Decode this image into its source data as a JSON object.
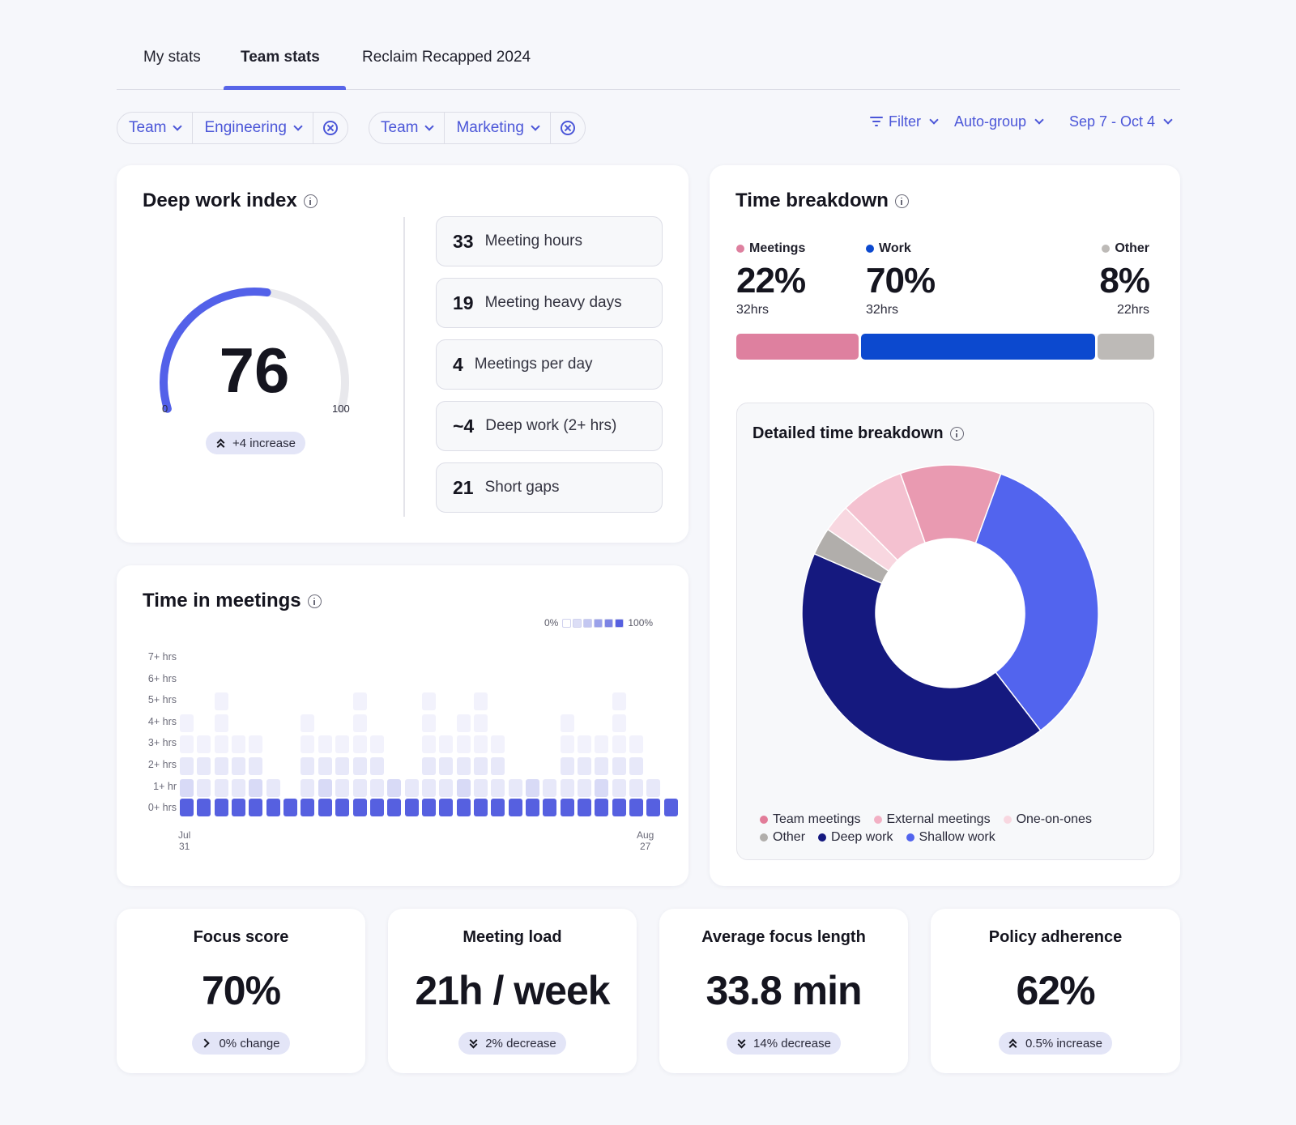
{
  "tabs": [
    {
      "label": "My stats"
    },
    {
      "label": "Team stats"
    },
    {
      "label": "Reclaim Recapped 2024"
    }
  ],
  "filters": [
    {
      "type": "Team",
      "value": "Engineering"
    },
    {
      "type": "Team",
      "value": "Marketing"
    }
  ],
  "toolbar": {
    "filter": "Filter",
    "group": "Auto-group",
    "date_range": "Sep 7 - Oct 4"
  },
  "deep_work": {
    "title": "Deep work index",
    "score": "76",
    "score_value": 76,
    "min": "0",
    "max": "100",
    "change": "+4 increase",
    "stats": [
      {
        "value": "33",
        "label": "Meeting hours"
      },
      {
        "value": "19",
        "label": "Meeting heavy days"
      },
      {
        "value": "4",
        "label": "Meetings per day"
      },
      {
        "value": "~4",
        "label": "Deep work (2+ hrs)"
      },
      {
        "value": "21",
        "label": "Short gaps"
      }
    ],
    "accent": "#5361e9",
    "track": "#e8e8ec"
  },
  "time_breakdown": {
    "title": "Time breakdown",
    "items": [
      {
        "label": "Meetings",
        "pct": "22%",
        "share": 22,
        "hours": "32hrs",
        "color": "#de809f"
      },
      {
        "label": "Work",
        "pct": "70%",
        "share": 70,
        "hours": "32hrs",
        "color": "#0c49cf"
      },
      {
        "label": "Other",
        "pct": "8%",
        "share": 8,
        "hours": "22hrs",
        "color": "#bdbab7"
      }
    ]
  },
  "detailed": {
    "title": "Detailed time breakdown",
    "legend": [
      {
        "label": "Team meetings",
        "color": "#e27c99"
      },
      {
        "label": "External meetings",
        "color": "#f2b0c4"
      },
      {
        "label": "One-on-ones",
        "color": "#f8d7e0"
      },
      {
        "label": "Other",
        "color": "#b1aeab"
      },
      {
        "label": "Deep work",
        "color": "#15197f"
      },
      {
        "label": "Shallow work",
        "color": "#5264ee"
      }
    ]
  },
  "chart_data": {
    "type": "pie",
    "title": "Detailed time breakdown",
    "labels": [
      "Shallow work",
      "Deep work",
      "Other",
      "One-on-ones",
      "External meetings",
      "Team meetings"
    ],
    "values": [
      34,
      42,
      3,
      3,
      7,
      11
    ],
    "colors": [
      "#5264ee",
      "#15197f",
      "#b1aeab",
      "#f8d7e0",
      "#f4c1d0",
      "#e99ab1"
    ],
    "donut": true
  },
  "meetings": {
    "title": "Time in meetings",
    "scale_min": "0%",
    "scale_max": "100%",
    "y_labels": [
      "7+ hrs",
      "6+ hrs",
      "5+ hrs",
      "4+ hrs",
      "3+ hrs",
      "2+ hrs",
      "1+ hr",
      "0+ hrs"
    ],
    "x_start": [
      "Jul",
      "31"
    ],
    "x_end": [
      "Aug",
      "27"
    ],
    "columns": [
      4,
      3,
      5,
      3,
      3,
      1,
      0,
      4,
      3,
      3,
      5,
      3,
      1,
      1,
      5,
      3,
      4,
      5,
      3,
      1,
      1,
      1,
      4,
      3,
      3,
      5,
      3,
      1,
      0
    ],
    "intensity_colors": [
      "#f2f2fc",
      "#e7e8f9",
      "#d8daf6",
      "#c7cbf2"
    ],
    "base_color": "#5660e0"
  },
  "kpis": [
    {
      "title": "Focus score",
      "value": "70%",
      "change": "0% change",
      "trend": "flat"
    },
    {
      "title": "Meeting load",
      "value": "21h / week",
      "change": "2% decrease",
      "trend": "down"
    },
    {
      "title": "Average focus length",
      "value": "33.8 min",
      "change": "14% decrease",
      "trend": "down"
    },
    {
      "title": "Policy adherence",
      "value": "62%",
      "change": "0.5% increase",
      "trend": "up"
    }
  ]
}
